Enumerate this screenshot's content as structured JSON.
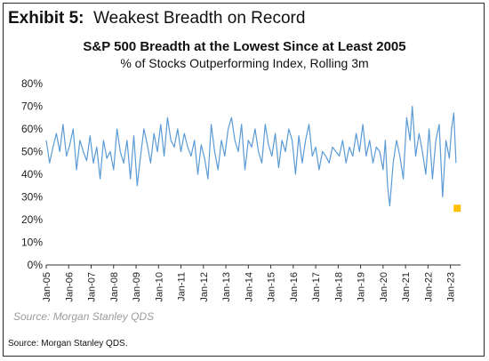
{
  "header": {
    "exhibit_label": "Exhibit 5:",
    "exhibit_title": "Weakest Breadth on Record"
  },
  "footer": {
    "watermark": "Source: Morgan Stanley QDS",
    "source": "Source: Morgan Stanley QDS."
  },
  "colors": {
    "line": "#5b9bd5",
    "marker": "#ffc000",
    "axis": "#333333"
  },
  "chart_data": {
    "type": "line",
    "title": "S&P 500 Breadth at the Lowest Since at Least 2005",
    "subtitle": "% of Stocks Outperforming  Index, Rolling 3m",
    "ylim": [
      0,
      80
    ],
    "yticks": [
      0,
      10,
      20,
      30,
      40,
      50,
      60,
      70,
      80
    ],
    "ytick_labels": [
      "0%",
      "10%",
      "20%",
      "30%",
      "40%",
      "50%",
      "60%",
      "70%",
      "80%"
    ],
    "xlim": [
      2005.0,
      2023.45
    ],
    "xticks": [
      2005,
      2006,
      2007,
      2008,
      2009,
      2010,
      2011,
      2012,
      2013,
      2014,
      2015,
      2016,
      2017,
      2018,
      2019,
      2020,
      2021,
      2022,
      2023
    ],
    "xtick_labels": [
      "Jan-05",
      "Jan-06",
      "Jan-07",
      "Jan-08",
      "Jan-09",
      "Jan-10",
      "Jan-11",
      "Jan-12",
      "Jan-13",
      "Jan-14",
      "Jan-15",
      "Jan-16",
      "Jan-17",
      "Jan-18",
      "Jan-19",
      "Jan-20",
      "Jan-21",
      "Jan-22",
      "Jan-23"
    ],
    "grid": false,
    "legend": "none",
    "series": [
      {
        "x": [
          2005.0,
          2005.15,
          2005.3,
          2005.45,
          2005.6,
          2005.75,
          2005.9,
          2006.05,
          2006.2,
          2006.35,
          2006.5,
          2006.65,
          2006.8,
          2006.95,
          2007.1,
          2007.25,
          2007.4,
          2007.55,
          2007.7,
          2007.85,
          2008.0,
          2008.15,
          2008.3,
          2008.45,
          2008.6,
          2008.75,
          2008.9,
          2009.05,
          2009.2,
          2009.35,
          2009.5,
          2009.65,
          2009.8,
          2009.95,
          2010.1,
          2010.25,
          2010.4,
          2010.55,
          2010.7,
          2010.85,
          2011.0,
          2011.15,
          2011.3,
          2011.45,
          2011.6,
          2011.75,
          2011.9,
          2012.05,
          2012.2,
          2012.35,
          2012.5,
          2012.65,
          2012.8,
          2012.95,
          2013.1,
          2013.25,
          2013.4,
          2013.55,
          2013.7,
          2013.85,
          2014.0,
          2014.15,
          2014.3,
          2014.45,
          2014.6,
          2014.75,
          2014.9,
          2015.05,
          2015.2,
          2015.35,
          2015.5,
          2015.65,
          2015.8,
          2015.95,
          2016.1,
          2016.25,
          2016.4,
          2016.55,
          2016.7,
          2016.85,
          2017.0,
          2017.15,
          2017.3,
          2017.45,
          2017.6,
          2017.75,
          2017.9,
          2018.05,
          2018.2,
          2018.35,
          2018.5,
          2018.65,
          2018.8,
          2018.95,
          2019.1,
          2019.25,
          2019.4,
          2019.55,
          2019.7,
          2019.85,
          2020.0,
          2020.1,
          2020.2,
          2020.3,
          2020.45,
          2020.6,
          2020.75,
          2020.9,
          2021.05,
          2021.2,
          2021.3,
          2021.45,
          2021.6,
          2021.75,
          2021.9,
          2022.05,
          2022.2,
          2022.35,
          2022.5,
          2022.65,
          2022.8,
          2022.95,
          2023.05,
          2023.15,
          2023.25
        ],
        "values": [
          55,
          45,
          52,
          58,
          50,
          62,
          48,
          53,
          60,
          42,
          55,
          50,
          46,
          57,
          45,
          52,
          38,
          55,
          47,
          50,
          42,
          60,
          50,
          45,
          55,
          38,
          57,
          35,
          48,
          60,
          53,
          45,
          58,
          50,
          62,
          48,
          65,
          55,
          52,
          60,
          50,
          58,
          52,
          48,
          55,
          40,
          53,
          47,
          38,
          62,
          50,
          42,
          55,
          48,
          60,
          65,
          55,
          50,
          62,
          42,
          55,
          52,
          60,
          50,
          45,
          62,
          53,
          48,
          58,
          43,
          55,
          50,
          60,
          55,
          40,
          57,
          45,
          55,
          62,
          48,
          52,
          42,
          50,
          48,
          45,
          52,
          50,
          48,
          55,
          45,
          52,
          48,
          58,
          50,
          62,
          48,
          55,
          45,
          52,
          50,
          42,
          55,
          35,
          26,
          45,
          55,
          48,
          38,
          65,
          55,
          70,
          48,
          58,
          50,
          40,
          60,
          38,
          55,
          62,
          30,
          55,
          47,
          60,
          67,
          45
        ]
      }
    ],
    "marker_points": [
      {
        "x": 2023.3,
        "y": 25
      }
    ]
  }
}
